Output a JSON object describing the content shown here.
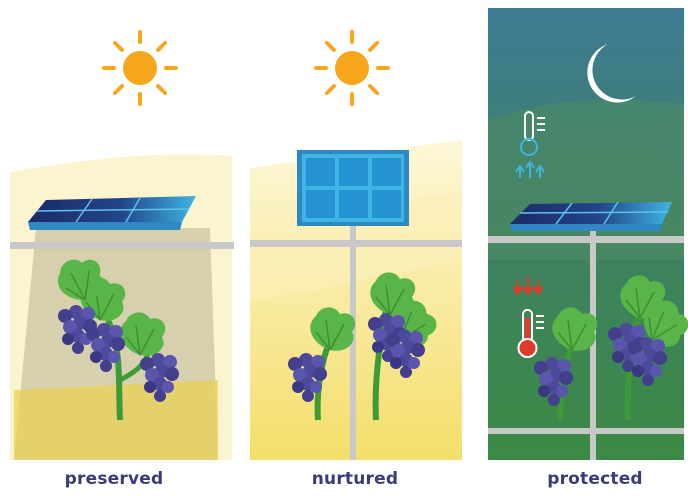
{
  "panels": [
    {
      "caption": "preserved"
    },
    {
      "caption": "nurtured"
    },
    {
      "caption": "protected"
    }
  ],
  "colors": {
    "sun": "#f7a71b",
    "sun_rays": "#f7a71b",
    "panel_dark": "#1d2c6b",
    "panel_light": "#3fb5e3",
    "rail": "#c8c8c8",
    "leaf": "#5ab548",
    "grape": "#4e4a9b",
    "night_top": "#33738a",
    "night_bottom": "#3d8a4a",
    "cold_icon": "#3fb5e3",
    "warm_icon": "#e03a2a"
  },
  "icons": [
    "sun-icon",
    "moon-icon",
    "solar-panel-icon",
    "thermometer-cold-icon",
    "thermometer-warm-icon",
    "grapevine-icon"
  ]
}
